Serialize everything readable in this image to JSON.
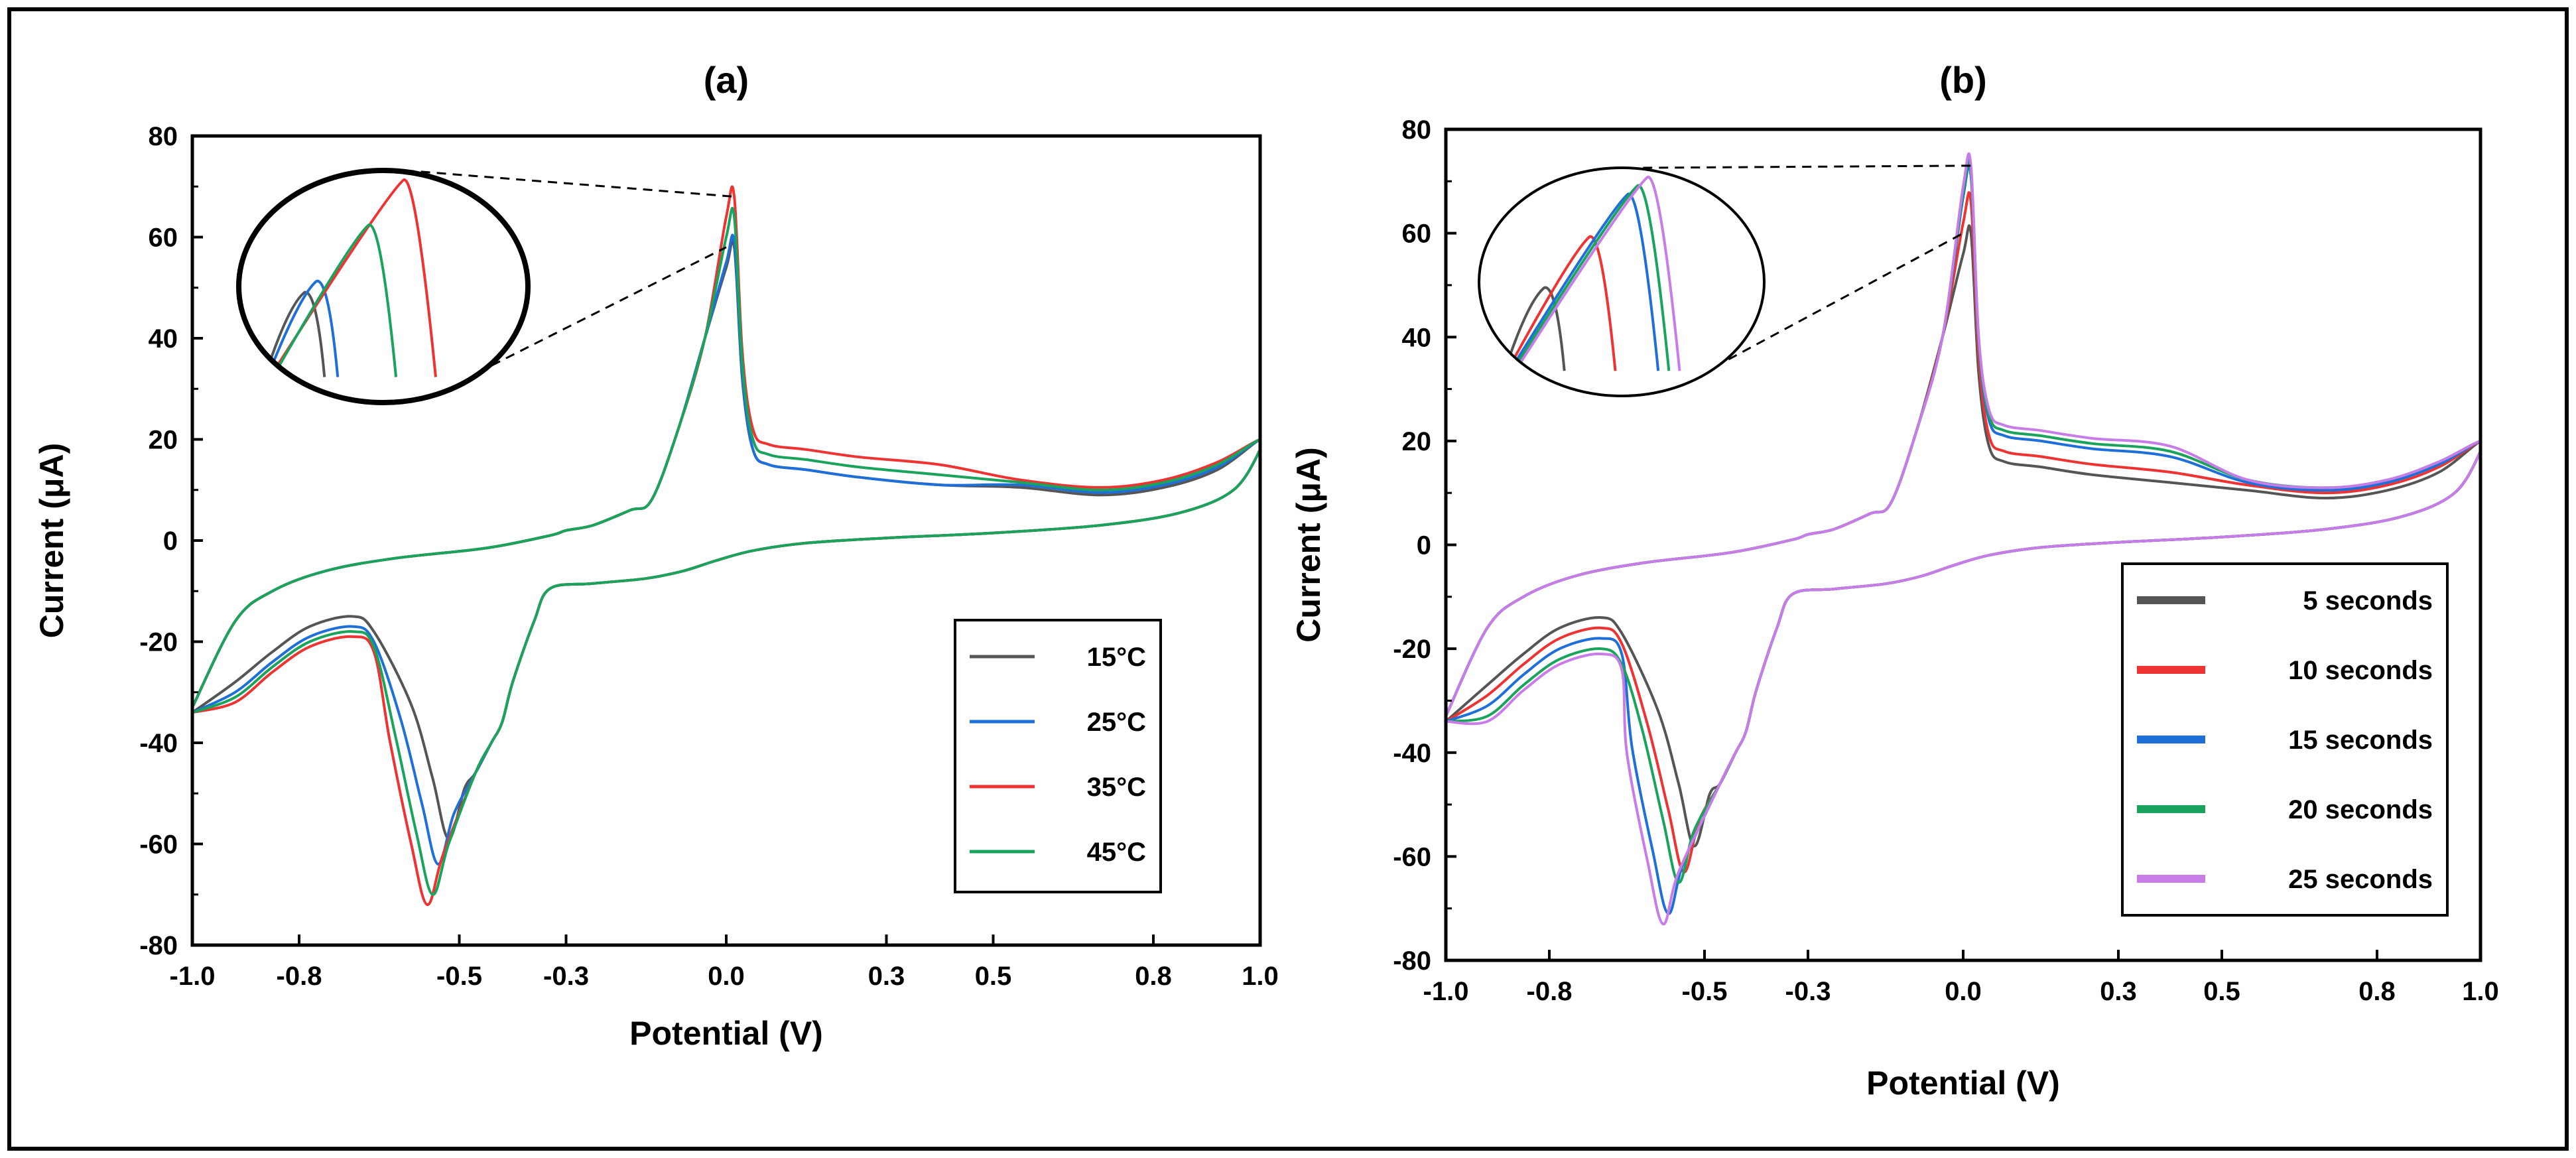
{
  "figure": {
    "chart_data": [
      {
        "type": "line",
        "title": "(a)",
        "xlabel": "Potential (V)",
        "ylabel": "Current (μA)",
        "xlim": [
          -1.0,
          1.0
        ],
        "ylim": [
          -80,
          80
        ],
        "x_ticks": [
          -1.0,
          -0.8,
          -0.5,
          -0.3,
          0.0,
          0.3,
          0.5,
          0.8,
          1.0
        ],
        "x_tick_labels": [
          "-1.0",
          "-0.8",
          "-0.5",
          "-0.3",
          "0.0",
          "0.3",
          "0.5",
          "0.8",
          "1.0"
        ],
        "y_ticks": [
          -80,
          -60,
          -40,
          -20,
          0,
          20,
          40,
          60,
          80
        ],
        "y_tick_labels": [
          "-80",
          "-60",
          "-40",
          "-20",
          "0",
          "20",
          "40",
          "60",
          "80"
        ],
        "legend_position": "bottom-right",
        "inset": "zoom-circle-upper-left",
        "series": [
          {
            "name": "15°C",
            "color": "#555555",
            "anodic_peak": 58,
            "cathodic_peak": -59,
            "cathodic_peak_x": -0.52,
            "cathodic_min": -15,
            "plateau": 14,
            "tail": 9
          },
          {
            "name": "25°C",
            "color": "#1f6fd8",
            "anodic_peak": 59,
            "cathodic_peak": -64,
            "cathodic_peak_x": -0.54,
            "cathodic_min": -17,
            "plateau": 14,
            "tail": 9.5
          },
          {
            "name": "35°C",
            "color": "#ee3333",
            "anodic_peak": 68,
            "cathodic_peak": -72,
            "cathodic_peak_x": -0.56,
            "cathodic_min": -19,
            "plateau": 18,
            "tail": 10.5
          },
          {
            "name": "45°C",
            "color": "#1aa35c",
            "anodic_peak": 64,
            "cathodic_peak": -70,
            "cathodic_peak_x": -0.55,
            "cathodic_min": -18,
            "plateau": 16,
            "tail": 10
          }
        ]
      },
      {
        "type": "line",
        "title": "(b)",
        "xlabel": "Potential (V)",
        "ylabel": "Current (μA)",
        "xlim": [
          -1.0,
          1.0
        ],
        "ylim": [
          -80,
          80
        ],
        "x_ticks": [
          -1.0,
          -0.8,
          -0.5,
          -0.3,
          0.0,
          0.3,
          0.5,
          0.8,
          1.0
        ],
        "x_tick_labels": [
          "-1.0",
          "-0.8",
          "-0.5",
          "-0.3",
          "0.0",
          "0.3",
          "0.5",
          "0.8",
          "1.0"
        ],
        "y_ticks": [
          -80,
          -60,
          -40,
          -20,
          0,
          20,
          40,
          60,
          80
        ],
        "y_tick_labels": [
          "-80",
          "-60",
          "-40",
          "-20",
          "0",
          "20",
          "40",
          "60",
          "80"
        ],
        "legend_position": "bottom-right",
        "inset": "zoom-circle-upper-left",
        "series": [
          {
            "name": "5 seconds",
            "color": "#555555",
            "anodic_peak": 60,
            "cathodic_peak": -58,
            "cathodic_peak_x": -0.52,
            "cathodic_min": -14,
            "plateau": 15,
            "tail": 9
          },
          {
            "name": "10 seconds",
            "color": "#ee3333",
            "anodic_peak": 66,
            "cathodic_peak": -63,
            "cathodic_peak_x": -0.54,
            "cathodic_min": -16,
            "plateau": 17,
            "tail": 10
          },
          {
            "name": "15 seconds",
            "color": "#1f6fd8",
            "anodic_peak": 71,
            "cathodic_peak": -71,
            "cathodic_peak_x": -0.57,
            "cathodic_min": -18,
            "plateau": 20,
            "tail": 10.5
          },
          {
            "name": "20 seconds",
            "color": "#1aa35c",
            "anodic_peak": 72,
            "cathodic_peak": -65,
            "cathodic_peak_x": -0.55,
            "cathodic_min": -20,
            "plateau": 21,
            "tail": 11
          },
          {
            "name": "25 seconds",
            "color": "#c77ce8",
            "anodic_peak": 73,
            "cathodic_peak": -73,
            "cathodic_peak_x": -0.58,
            "cathodic_min": -21,
            "plateau": 22,
            "tail": 11
          }
        ]
      }
    ]
  }
}
